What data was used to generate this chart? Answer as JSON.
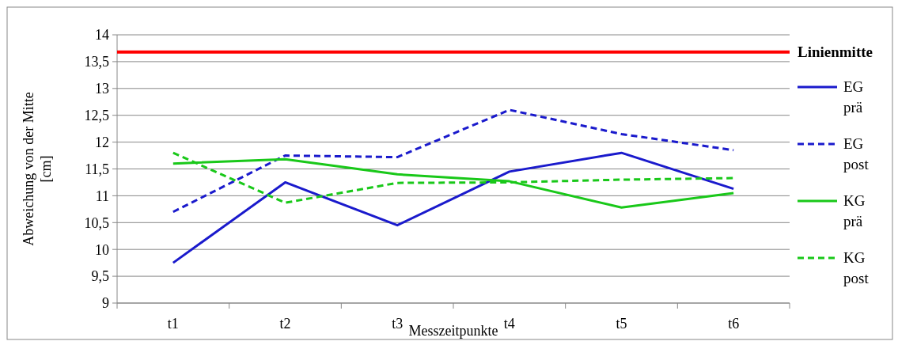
{
  "chart_data": {
    "type": "line",
    "xlabel": "Messzeitpunkte",
    "ylabel": "Abweichung von der Mitte [cm]",
    "categories": [
      "t1",
      "t2",
      "t3",
      "t4",
      "t5",
      "t6"
    ],
    "series": [
      {
        "name": "EG prä",
        "color": "#1a1acc",
        "line_style": "solid",
        "values": [
          9.75,
          11.25,
          10.45,
          11.45,
          11.8,
          11.13
        ]
      },
      {
        "name": "EG post",
        "color": "#1a1acc",
        "line_style": "dashed",
        "values": [
          10.7,
          11.75,
          11.72,
          12.6,
          12.15,
          11.85
        ]
      },
      {
        "name": "KG prä",
        "color": "#19c819",
        "line_style": "solid",
        "values": [
          11.6,
          11.68,
          11.4,
          11.27,
          10.78,
          11.05
        ]
      },
      {
        "name": "KG post",
        "color": "#19c819",
        "line_style": "dashed",
        "values": [
          11.8,
          10.87,
          11.24,
          11.25,
          11.3,
          11.33
        ]
      }
    ],
    "ref_lines": [
      {
        "axis": "y",
        "value": 13.68,
        "label": "Linienmitte",
        "color": "#ff0000"
      }
    ],
    "ylim": [
      9,
      14
    ],
    "yticks": [
      9,
      {
        "value": 9.5,
        "label": "9,5"
      },
      10,
      {
        "value": 10.5,
        "label": "10,5"
      },
      11,
      {
        "value": 11.5,
        "label": "11,5"
      },
      12,
      {
        "value": 12.5,
        "label": "12,5"
      },
      13,
      {
        "value": 13.5,
        "label": "13,5"
      },
      14
    ],
    "grid": "y",
    "legend": "right",
    "marker": "none"
  }
}
